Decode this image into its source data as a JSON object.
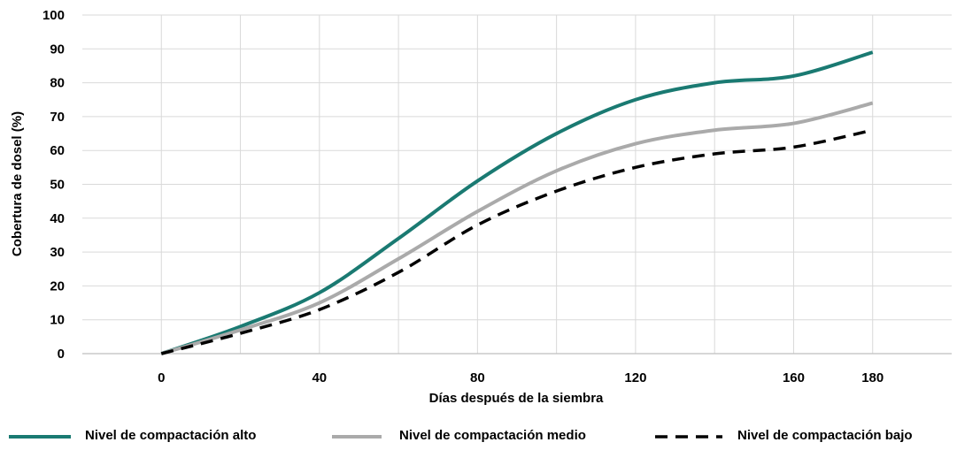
{
  "chart_data": {
    "type": "line",
    "xlabel": "Días después de la siembra",
    "ylabel": "Cobertura de dosel (%)",
    "xlim": [
      -20,
      200
    ],
    "ylim": [
      0,
      100
    ],
    "x_ticks": [
      0,
      40,
      80,
      120,
      160,
      180
    ],
    "y_ticks": [
      0,
      10,
      20,
      30,
      40,
      50,
      60,
      70,
      80,
      90,
      100
    ],
    "grid": true,
    "legend_position": "bottom",
    "series": [
      {
        "name": "Nivel de compactación alto",
        "color": "#1a7a72",
        "style": "solid",
        "x": [
          0,
          20,
          40,
          60,
          80,
          100,
          120,
          140,
          160,
          180
        ],
        "y": [
          0,
          8,
          18,
          34,
          51,
          65,
          75,
          80,
          82,
          89
        ]
      },
      {
        "name": "Nivel de compactación medio",
        "color": "#aaaaaa",
        "style": "solid",
        "x": [
          0,
          20,
          40,
          60,
          80,
          100,
          120,
          140,
          160,
          180
        ],
        "y": [
          0,
          7,
          15,
          28,
          42,
          54,
          62,
          66,
          68,
          74
        ]
      },
      {
        "name": "Nivel de compactación bajo",
        "color": "#000000",
        "style": "dashed",
        "x": [
          0,
          20,
          40,
          60,
          80,
          100,
          120,
          140,
          160,
          180
        ],
        "y": [
          0,
          6,
          13,
          24,
          38,
          48,
          55,
          59,
          61,
          66
        ]
      }
    ]
  }
}
